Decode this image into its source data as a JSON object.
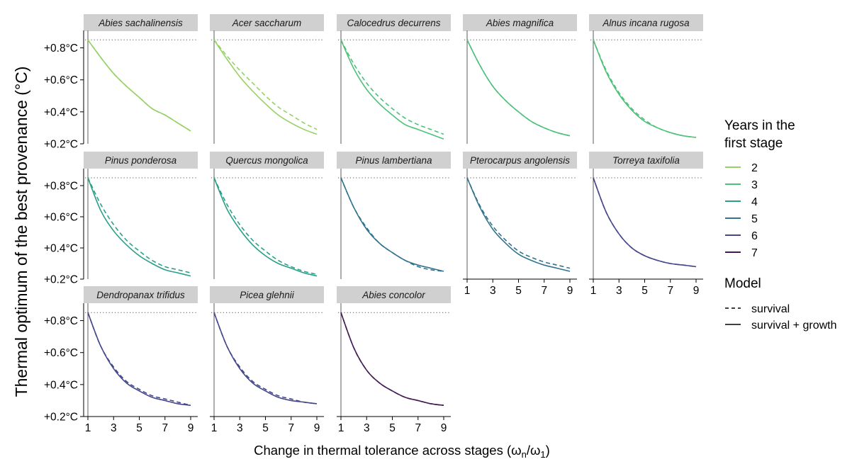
{
  "chart_data": {
    "type": "line",
    "xlabel": "Change in thermal tolerance across stages (ω",
    "xlabel_sub_n": "n",
    "xlabel_slash": "/ω",
    "xlabel_sub_1": "1",
    "xlabel_close": ")",
    "ylabel": "Thermal optimum of the best provenance (°C)",
    "xlim": [
      1,
      9
    ],
    "ylim": [
      0.2,
      0.9
    ],
    "xticks": [
      1,
      3,
      5,
      7,
      9
    ],
    "xtick_labels": [
      "1",
      "3",
      "5",
      "7",
      "9"
    ],
    "yticks": [
      0.2,
      0.4,
      0.6,
      0.8
    ],
    "ytick_labels": [
      "+0.2°C",
      "+0.4°C",
      "+0.6°C",
      "+0.8°C"
    ],
    "reference_line": 0.85,
    "x": [
      1,
      2,
      3,
      4,
      5,
      6,
      7,
      8,
      9
    ],
    "legend_color_title_1": "Years in the",
    "legend_color_title_2": "first stage",
    "legend_linetype_title": "Model",
    "year_colors": [
      {
        "label": "2",
        "color": "#95d163"
      },
      {
        "label": "3",
        "color": "#4ec07a"
      },
      {
        "label": "4",
        "color": "#2aa089"
      },
      {
        "label": "5",
        "color": "#32748e"
      },
      {
        "label": "6",
        "color": "#44478b"
      },
      {
        "label": "7",
        "color": "#431a55"
      }
    ],
    "model_types": [
      {
        "label": "survival",
        "dash": "dashed"
      },
      {
        "label": "survival + growth",
        "dash": "solid"
      }
    ],
    "panels": [
      {
        "species": "Abies sachalinensis",
        "year": "2",
        "survival": [
          0.85,
          0.74,
          0.64,
          0.56,
          0.49,
          0.42,
          0.38,
          0.33,
          0.28
        ],
        "survival_growth": [
          0.85,
          0.74,
          0.64,
          0.56,
          0.49,
          0.42,
          0.38,
          0.33,
          0.28
        ]
      },
      {
        "species": "Acer saccharum",
        "year": "2",
        "survival": [
          0.85,
          0.75,
          0.66,
          0.58,
          0.5,
          0.43,
          0.38,
          0.33,
          0.29
        ],
        "survival_growth": [
          0.85,
          0.73,
          0.62,
          0.53,
          0.45,
          0.38,
          0.33,
          0.29,
          0.26
        ]
      },
      {
        "species": "Calocedrus decurrens",
        "year": "3",
        "survival": [
          0.85,
          0.7,
          0.58,
          0.49,
          0.42,
          0.36,
          0.32,
          0.29,
          0.26
        ],
        "survival_growth": [
          0.85,
          0.67,
          0.54,
          0.45,
          0.38,
          0.32,
          0.29,
          0.26,
          0.23
        ]
      },
      {
        "species": "Abies magnifica",
        "year": "3",
        "survival": [
          0.85,
          0.69,
          0.56,
          0.47,
          0.4,
          0.34,
          0.3,
          0.27,
          0.25
        ],
        "survival_growth": [
          0.85,
          0.69,
          0.56,
          0.47,
          0.4,
          0.34,
          0.3,
          0.27,
          0.25
        ]
      },
      {
        "species": "Alnus incana rugosa",
        "year": "3",
        "survival": [
          0.85,
          0.66,
          0.52,
          0.42,
          0.35,
          0.3,
          0.27,
          0.25,
          0.24
        ],
        "survival_growth": [
          0.85,
          0.65,
          0.51,
          0.41,
          0.34,
          0.3,
          0.27,
          0.25,
          0.24
        ]
      },
      {
        "species": "Pinus ponderosa",
        "year": "4",
        "survival": [
          0.85,
          0.68,
          0.55,
          0.45,
          0.38,
          0.32,
          0.28,
          0.26,
          0.24
        ],
        "survival_growth": [
          0.85,
          0.64,
          0.51,
          0.42,
          0.35,
          0.3,
          0.26,
          0.24,
          0.22
        ]
      },
      {
        "species": "Quercus mongolica",
        "year": "4",
        "survival": [
          0.85,
          0.68,
          0.55,
          0.45,
          0.38,
          0.32,
          0.28,
          0.25,
          0.23
        ],
        "survival_growth": [
          0.85,
          0.65,
          0.52,
          0.42,
          0.35,
          0.3,
          0.27,
          0.24,
          0.22
        ]
      },
      {
        "species": "Pinus lambertiana",
        "year": "5",
        "survival": [
          0.85,
          0.66,
          0.53,
          0.43,
          0.37,
          0.32,
          0.28,
          0.26,
          0.25
        ],
        "survival_growth": [
          0.85,
          0.66,
          0.52,
          0.43,
          0.37,
          0.32,
          0.29,
          0.27,
          0.25
        ]
      },
      {
        "species": "Pterocarpus angolensis",
        "year": "5",
        "survival": [
          0.85,
          0.67,
          0.54,
          0.45,
          0.38,
          0.34,
          0.31,
          0.29,
          0.27
        ],
        "survival_growth": [
          0.85,
          0.66,
          0.52,
          0.43,
          0.36,
          0.32,
          0.29,
          0.27,
          0.25
        ]
      },
      {
        "species": "Torreya taxifolia",
        "year": "6",
        "survival": [
          0.85,
          0.63,
          0.49,
          0.4,
          0.35,
          0.32,
          0.3,
          0.29,
          0.28
        ],
        "survival_growth": [
          0.85,
          0.63,
          0.49,
          0.4,
          0.35,
          0.32,
          0.3,
          0.29,
          0.28
        ]
      },
      {
        "species": "Dendropanax trifidus",
        "year": "6",
        "survival": [
          0.85,
          0.64,
          0.51,
          0.42,
          0.37,
          0.33,
          0.31,
          0.29,
          0.27
        ],
        "survival_growth": [
          0.85,
          0.64,
          0.5,
          0.41,
          0.36,
          0.32,
          0.3,
          0.28,
          0.27
        ]
      },
      {
        "species": "Picea glehnii",
        "year": "6",
        "survival": [
          0.85,
          0.64,
          0.51,
          0.42,
          0.37,
          0.33,
          0.31,
          0.29,
          0.28
        ],
        "survival_growth": [
          0.85,
          0.64,
          0.5,
          0.41,
          0.36,
          0.32,
          0.3,
          0.29,
          0.28
        ]
      },
      {
        "species": "Abies concolor",
        "year": "7",
        "survival": [
          0.85,
          0.63,
          0.49,
          0.41,
          0.36,
          0.32,
          0.3,
          0.28,
          0.27
        ],
        "survival_growth": [
          0.85,
          0.63,
          0.49,
          0.41,
          0.36,
          0.32,
          0.3,
          0.28,
          0.27
        ]
      }
    ]
  }
}
